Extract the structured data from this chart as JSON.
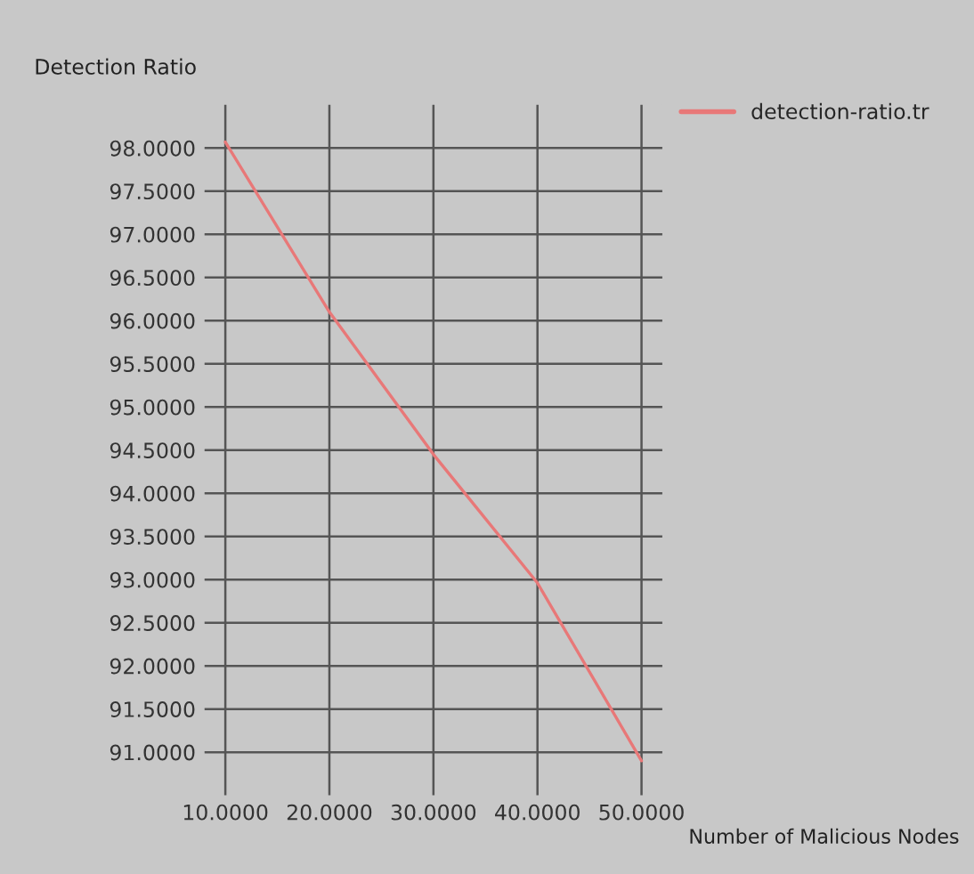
{
  "chart_data": {
    "type": "line",
    "xlabel": "Number of Malicious Nodes",
    "ylabel": "Detection Ratio",
    "x": [
      10,
      20,
      30,
      40,
      50
    ],
    "series": [
      {
        "name": "detection-ratio.tr",
        "color": "#e87878",
        "values": [
          98.07,
          96.1,
          94.45,
          92.96,
          90.9
        ]
      }
    ],
    "xlim": [
      8,
      52
    ],
    "ylim": [
      90.5,
      98.5
    ],
    "xticks": [
      {
        "value": 10,
        "label": "10.0000"
      },
      {
        "value": 20,
        "label": "20.0000"
      },
      {
        "value": 30,
        "label": "30.0000"
      },
      {
        "value": 40,
        "label": "40.0000"
      },
      {
        "value": 50,
        "label": "50.0000"
      }
    ],
    "yticks": [
      {
        "value": 91,
        "label": "91.0000"
      },
      {
        "value": 91.5,
        "label": "91.5000"
      },
      {
        "value": 92,
        "label": "92.0000"
      },
      {
        "value": 92.5,
        "label": "92.5000"
      },
      {
        "value": 93,
        "label": "93.0000"
      },
      {
        "value": 93.5,
        "label": "93.5000"
      },
      {
        "value": 94,
        "label": "94.0000"
      },
      {
        "value": 94.5,
        "label": "94.5000"
      },
      {
        "value": 95,
        "label": "95.0000"
      },
      {
        "value": 95.5,
        "label": "95.5000"
      },
      {
        "value": 96,
        "label": "96.0000"
      },
      {
        "value": 96.5,
        "label": "96.5000"
      },
      {
        "value": 97,
        "label": "97.0000"
      },
      {
        "value": 97.5,
        "label": "97.5000"
      },
      {
        "value": 98,
        "label": "98.0000"
      }
    ],
    "grid": true,
    "legend": "top right",
    "marker": "none",
    "line_style": "solid"
  }
}
